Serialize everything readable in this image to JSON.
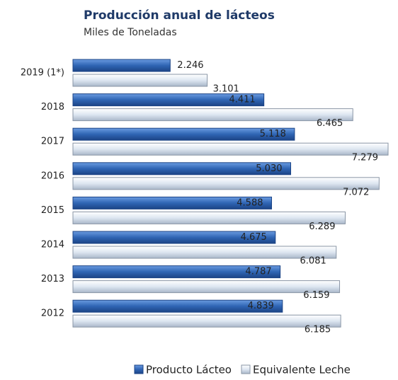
{
  "chart_data": {
    "type": "hbar",
    "title": "Producción anual de lácteos",
    "subtitle": "Miles de Toneladas",
    "categories": [
      "2019 (1*)",
      "2018",
      "2017",
      "2016",
      "2015",
      "2014",
      "2013",
      "2012"
    ],
    "series": [
      {
        "name": "Producto Lácteo",
        "color": "#2f65b4",
        "values": [
          2246,
          4411,
          5118,
          5030,
          4588,
          4675,
          4787,
          4839
        ],
        "value_labels": [
          "2.246",
          "4.411",
          "5.118",
          "5.030",
          "4.588",
          "4.675",
          "4.787",
          "4.839"
        ]
      },
      {
        "name": "Equivalente Leche",
        "color": "#dde6f1",
        "values": [
          3101,
          6465,
          7279,
          7072,
          6289,
          6081,
          6159,
          6185
        ],
        "value_labels": [
          "3.101",
          "6.465",
          "7.279",
          "7.072",
          "6.289",
          "6.081",
          "6.159",
          "6.185"
        ]
      }
    ]
  }
}
